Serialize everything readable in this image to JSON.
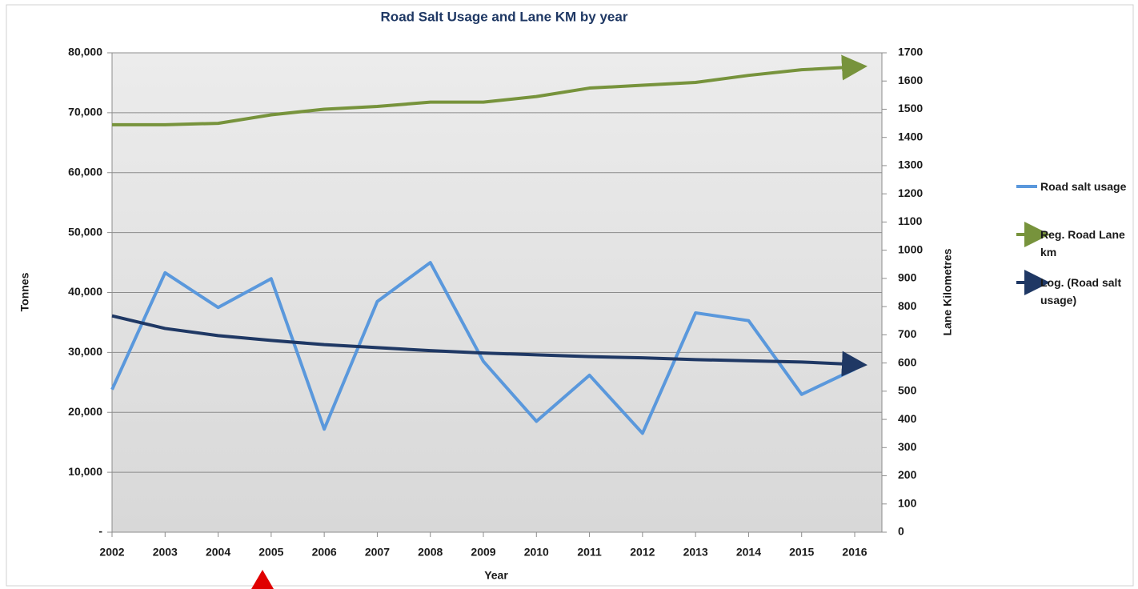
{
  "chart_data": {
    "type": "line",
    "title": "Road Salt Usage and Lane KM by year",
    "xlabel": "Year",
    "ylabel": "Tonnes",
    "y2label": "Lane Kilometres",
    "categories": [
      "2002",
      "2003",
      "2004",
      "2005",
      "2006",
      "2007",
      "2008",
      "2009",
      "2010",
      "2011",
      "2012",
      "2013",
      "2014",
      "2015",
      "2016"
    ],
    "ylim": [
      0,
      80000
    ],
    "yticks": [
      {
        "value": 0,
        "label": "-"
      },
      {
        "value": 10000,
        "label": "10,000"
      },
      {
        "value": 20000,
        "label": "20,000"
      },
      {
        "value": 30000,
        "label": "30,000"
      },
      {
        "value": 40000,
        "label": "40,000"
      },
      {
        "value": 50000,
        "label": "50,000"
      },
      {
        "value": 60000,
        "label": "60,000"
      },
      {
        "value": 70000,
        "label": "70,000"
      },
      {
        "value": 80000,
        "label": "80,000"
      }
    ],
    "y2lim": [
      0,
      1700
    ],
    "y2ticks": [
      0,
      100,
      200,
      300,
      400,
      500,
      600,
      700,
      800,
      900,
      1000,
      1100,
      1200,
      1300,
      1400,
      1500,
      1600,
      1700
    ],
    "grid": true,
    "legend": "right",
    "series": [
      {
        "name": "Road salt usage",
        "color": "#5a98dc",
        "values": [
          23800,
          43300,
          37500,
          42300,
          17200,
          38500,
          45000,
          28500,
          18500,
          26200,
          16500,
          36600,
          35300,
          23000,
          27200
        ]
      },
      {
        "name": "Reg. Road Lane km",
        "color": "#77933c",
        "axis": "y2",
        "values": [
          1445,
          1445,
          1450,
          1480,
          1500,
          1510,
          1525,
          1525,
          1545,
          1575,
          1585,
          1595,
          1620,
          1640,
          1650
        ]
      },
      {
        "name": "Log. (Road salt usage)",
        "color": "#1f3864",
        "values": [
          36100,
          34000,
          32800,
          32000,
          31300,
          30800,
          30300,
          29900,
          29600,
          29300,
          29100,
          28800,
          28600,
          28400,
          28000
        ]
      }
    ]
  }
}
